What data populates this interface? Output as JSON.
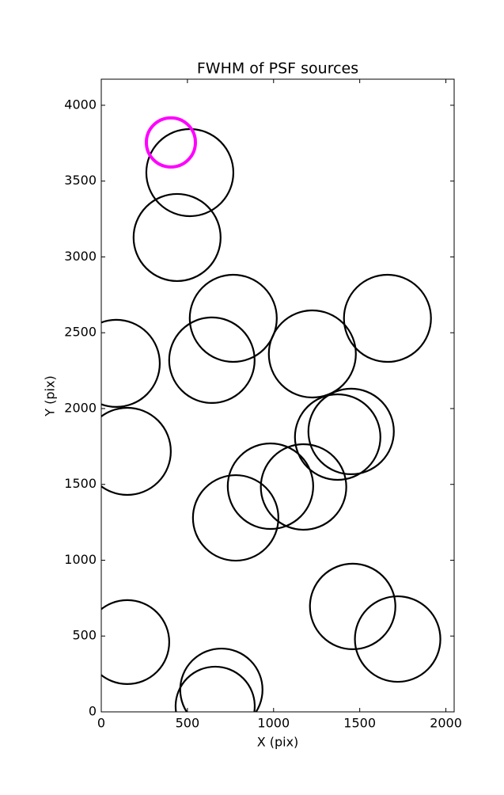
{
  "chart_data": {
    "type": "scatter",
    "title": "FWHM of PSF sources",
    "xlabel": "X (pix)",
    "ylabel": "Y (pix)",
    "xlim": [
      0,
      2048
    ],
    "ylim": [
      0,
      4172
    ],
    "xticks": [
      0,
      500,
      1000,
      1500,
      2000
    ],
    "yticks": [
      0,
      500,
      1000,
      1500,
      2000,
      2500,
      3000,
      3500,
      4000
    ],
    "grid": false,
    "series": [
      {
        "color": "#000000",
        "x": [
          514,
          440,
          766,
          1661,
          87,
          642,
          1225,
          1450,
          1372,
          151,
          982,
          1174,
          780,
          1459,
          1720,
          151,
          697,
          661
        ],
        "values": [
          3556,
          3128,
          2595,
          2595,
          2298,
          2319,
          2360,
          1849,
          1812,
          1718,
          1488,
          1483,
          1279,
          695,
          480,
          460,
          146,
          37
        ],
        "sizes": [
          55,
          55,
          55,
          55,
          55,
          54,
          55,
          54,
          54,
          55,
          54,
          54,
          54,
          54,
          54,
          53,
          52,
          50
        ]
      },
      {
        "color": "#ff00ff",
        "x": [
          404
        ],
        "values": [
          3755
        ],
        "sizes": [
          31
        ]
      }
    ]
  }
}
